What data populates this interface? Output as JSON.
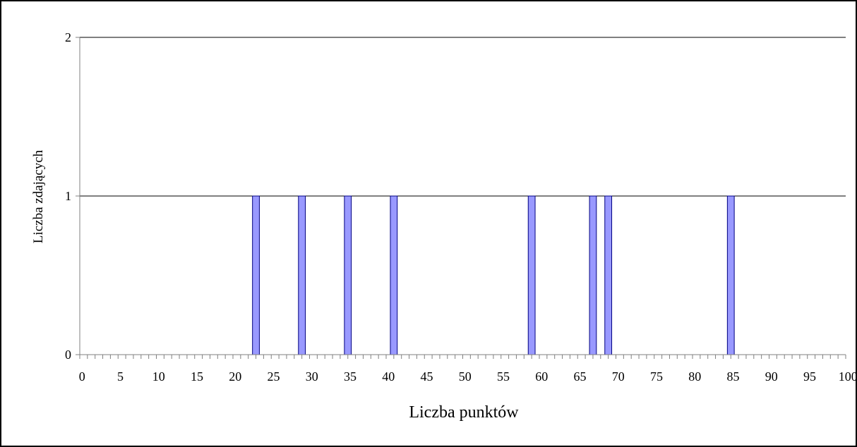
{
  "chart_data": {
    "type": "bar",
    "xlabel": "Liczba punktów",
    "ylabel": "Liczba zdających",
    "xlim": [
      0,
      100
    ],
    "ylim": [
      0,
      2
    ],
    "x_tick_step": 5,
    "y_ticks": [
      0,
      1,
      2
    ],
    "grid": "horizontal major",
    "x": [
      23,
      29,
      35,
      41,
      59,
      67,
      69,
      85
    ],
    "values": [
      1,
      1,
      1,
      1,
      1,
      1,
      1,
      1
    ],
    "colors": {
      "bar_fill": "#9999ff",
      "bar_stroke": "#000080",
      "axis": "#808080",
      "grid": "#000000"
    }
  }
}
